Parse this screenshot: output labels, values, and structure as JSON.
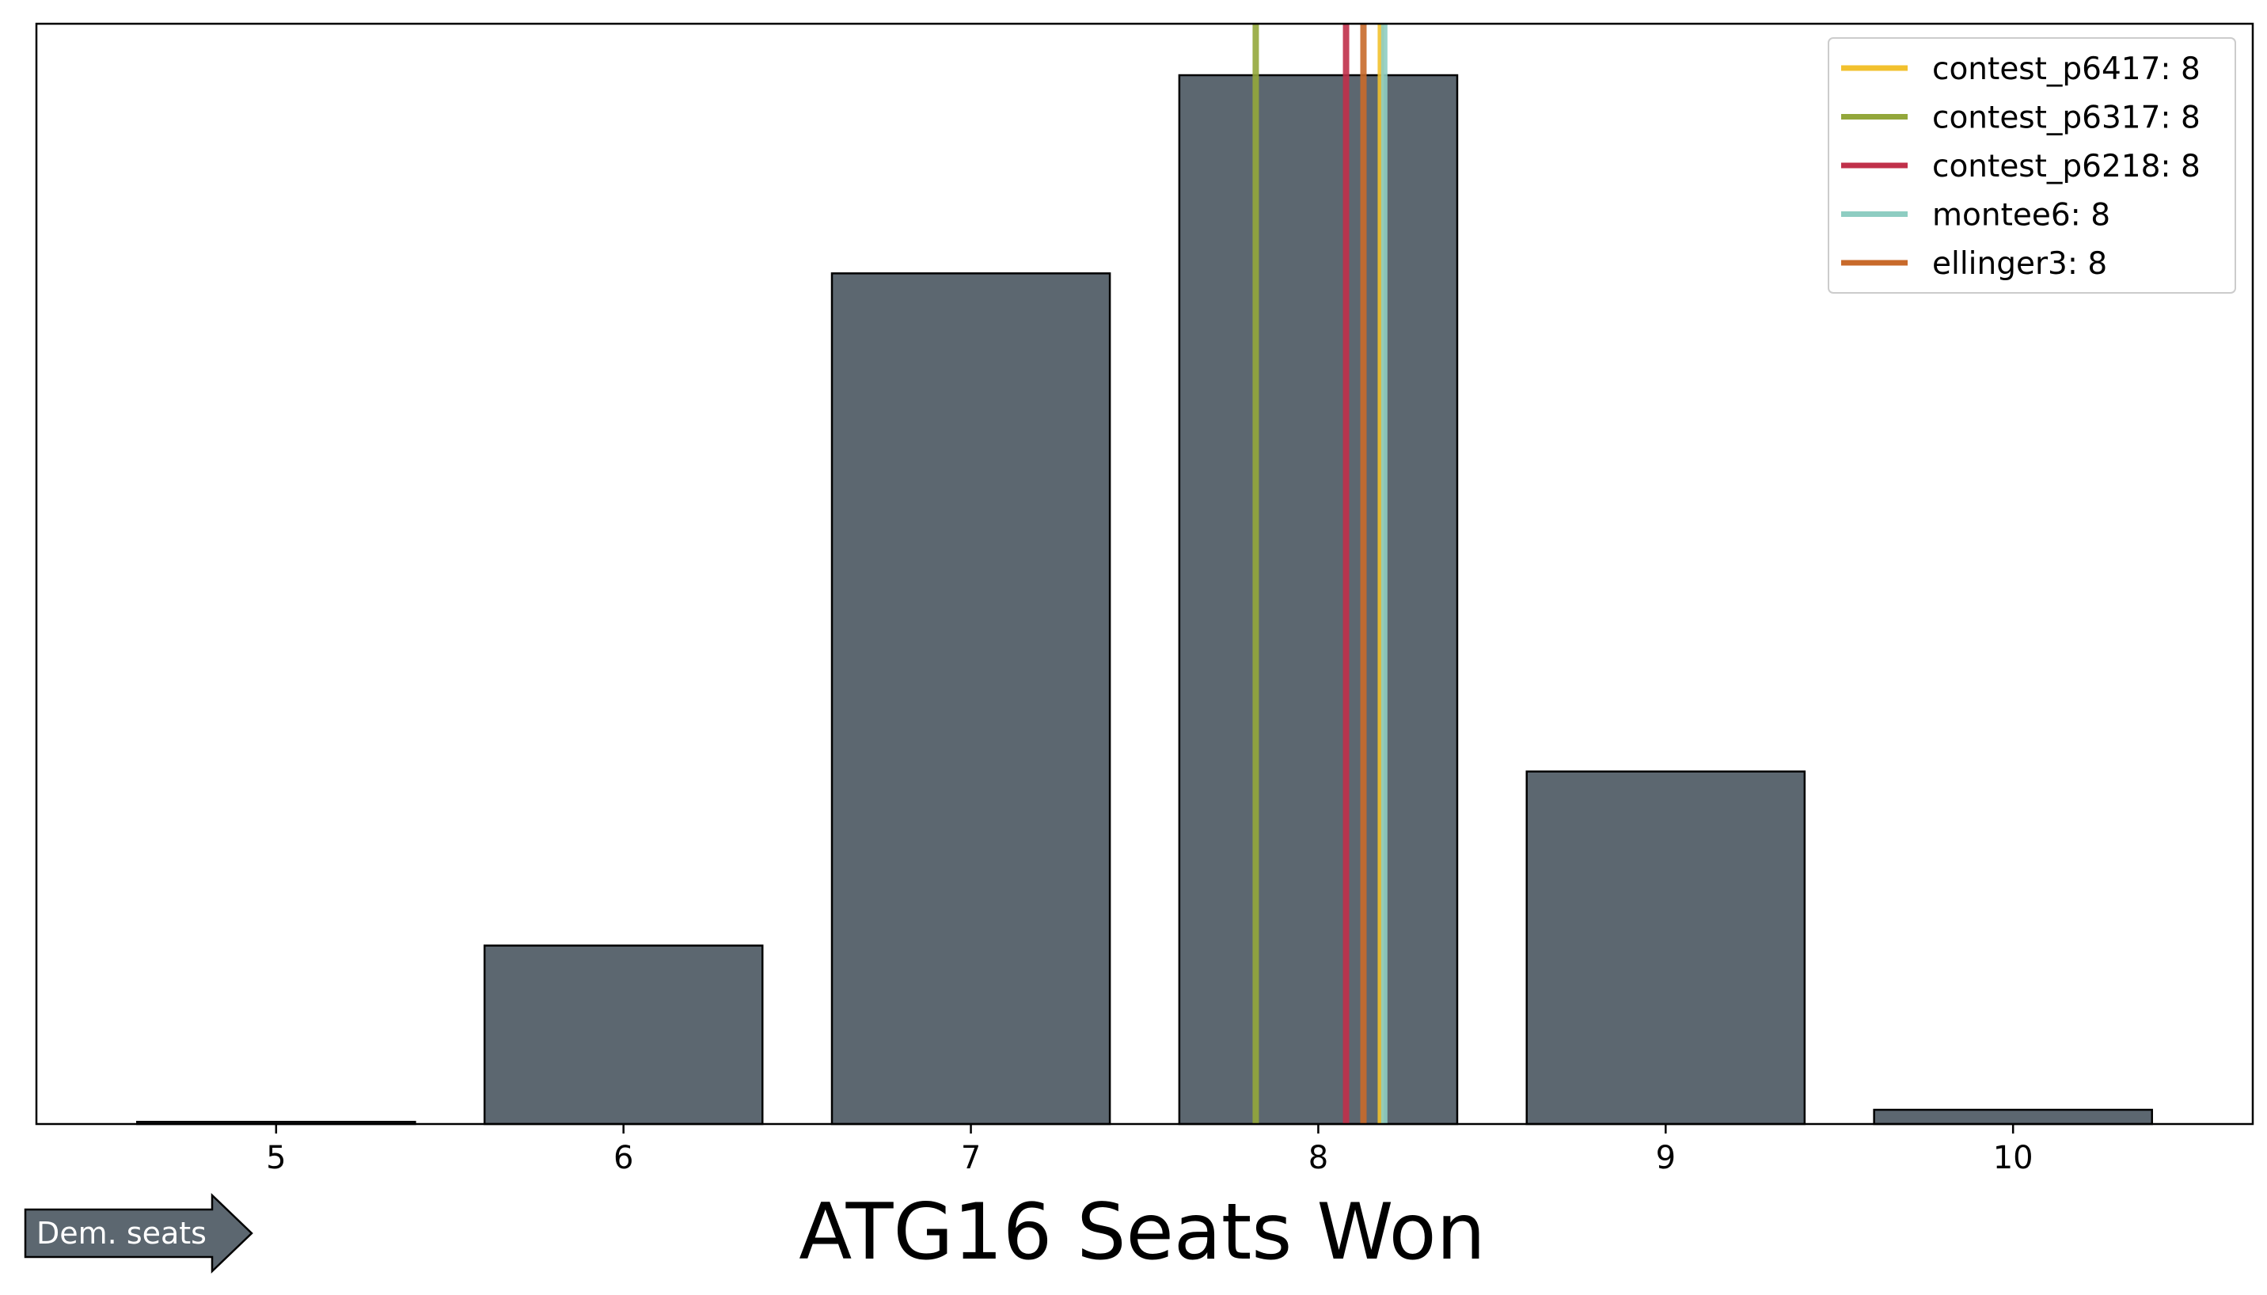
{
  "chart_data": {
    "type": "bar",
    "categories": [
      "5",
      "6",
      "7",
      "8",
      "9",
      "10"
    ],
    "values": [
      0.2,
      16.3,
      77.7,
      95.8,
      32.2,
      1.3
    ],
    "bar_color": "#5c6770",
    "bar_edge_color": "#000000",
    "xlabel": "ATG16 Seats Won",
    "ylabel": "",
    "xlim": [
      4.31,
      10.69
    ],
    "ylim": [
      0,
      100.5
    ],
    "yaxis_ticks_visible": false,
    "grid": false,
    "reference_lines": [
      {
        "name": "contest_p6417: 8",
        "x": 8.18,
        "color": "#f2c12e"
      },
      {
        "name": "contest_p6317: 8",
        "x": 7.82,
        "color": "#93a73b"
      },
      {
        "name": "contest_p6218: 8",
        "x": 8.08,
        "color": "#c0304a"
      },
      {
        "name": "montee6: 8",
        "x": 8.19,
        "color": "#8ecdc2"
      },
      {
        "name": "ellinger3: 8",
        "x": 8.13,
        "color": "#c86a2b"
      }
    ],
    "legend_placement": "top-right",
    "arrow_label": "Dem. seats",
    "arrow_color": "#5c6770"
  }
}
